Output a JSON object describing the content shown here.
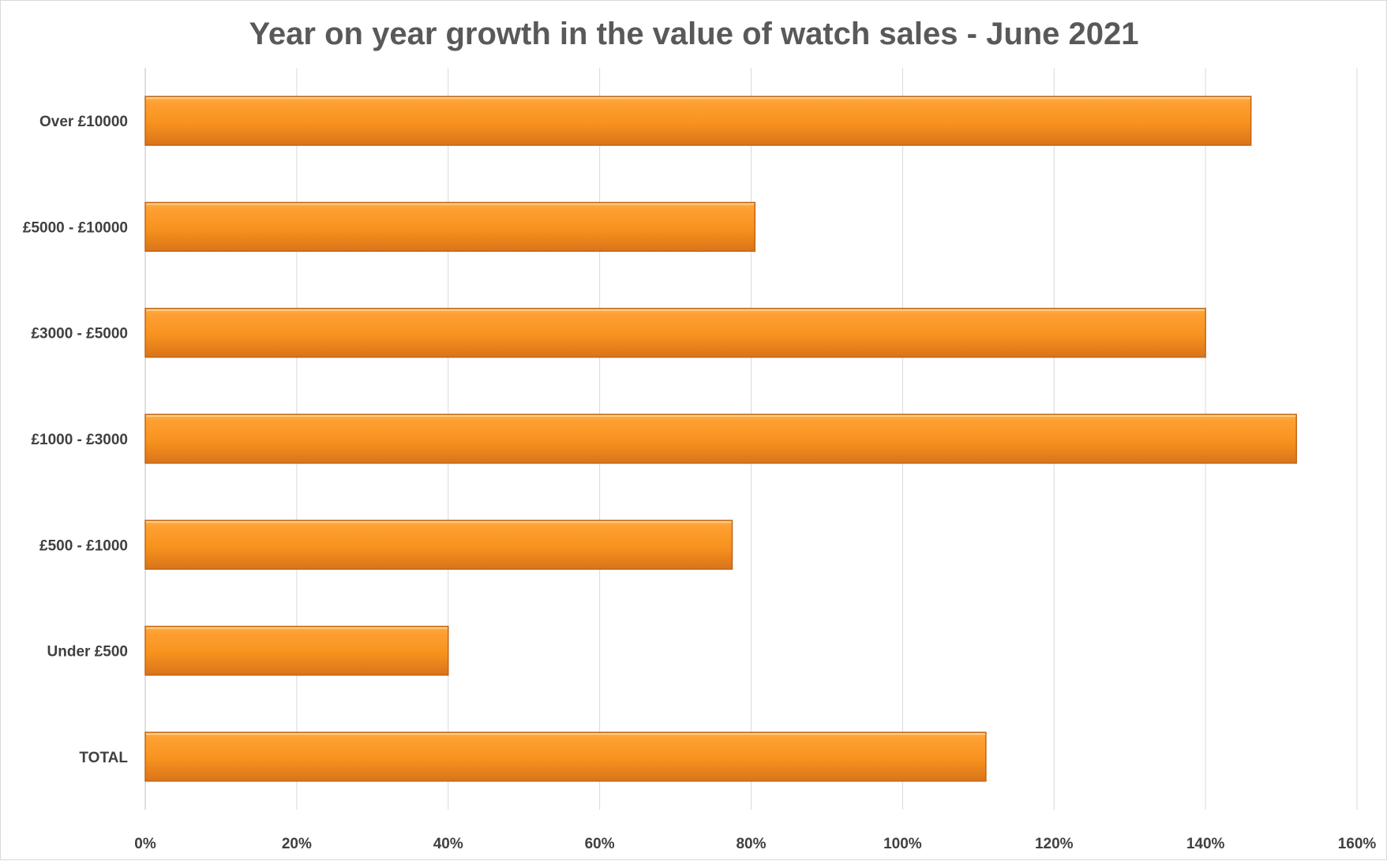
{
  "chart_data": {
    "type": "bar",
    "orientation": "horizontal",
    "title": "Year on year growth in the value of watch sales - June 2021",
    "xlabel": "",
    "ylabel": "",
    "categories": [
      "Over £10000",
      "£5000 - £10000",
      "£3000 - £5000",
      "£1000 - £3000",
      "£500 - £1000",
      "Under £500",
      "TOTAL"
    ],
    "values": [
      146,
      80.5,
      140,
      152,
      77.5,
      40,
      111
    ],
    "value_unit": "%",
    "xlim": [
      0,
      160
    ],
    "xticks": [
      "0%",
      "20%",
      "40%",
      "60%",
      "80%",
      "100%",
      "120%",
      "140%",
      "160%"
    ],
    "grid": "vertical",
    "legend": "none",
    "bar_color": "#f7941d",
    "bar_edge_color": "#c0661a"
  }
}
